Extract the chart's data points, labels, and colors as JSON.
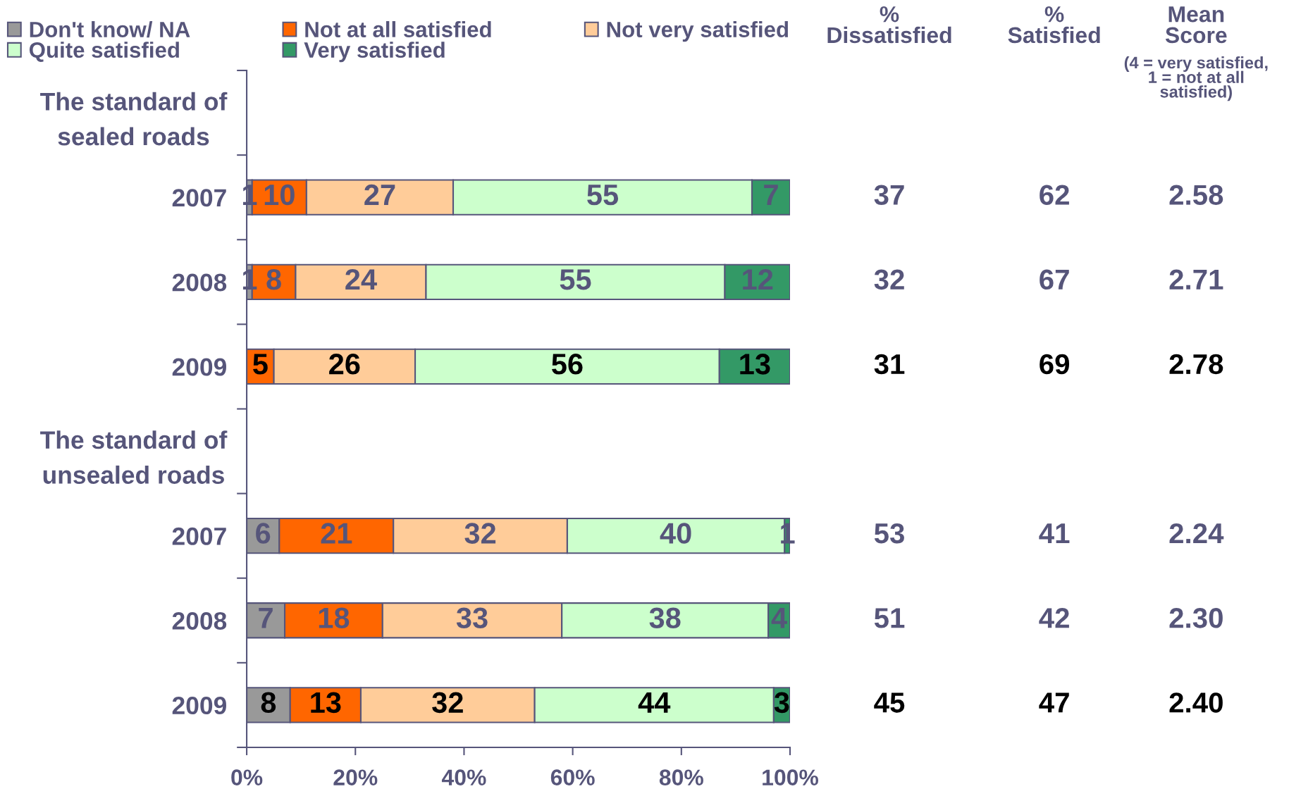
{
  "chart_data": {
    "type": "bar",
    "orientation": "horizontal",
    "stacked": true,
    "categories": [
      "The standard of\nsealed roads",
      "2007",
      "2008",
      "2009",
      "The standard of\nunsealed roads",
      "2007",
      "2008",
      "2009"
    ],
    "series": [
      {
        "name": "Don't know/ NA",
        "color": "#999999",
        "values": [
          null,
          1,
          1,
          null,
          null,
          6,
          7,
          8
        ]
      },
      {
        "name": "Not at all satisfied",
        "color": "#ff6600",
        "values": [
          null,
          10,
          8,
          5,
          null,
          21,
          18,
          13
        ]
      },
      {
        "name": "Not very satisfied",
        "color": "#ffcc99",
        "values": [
          null,
          27,
          24,
          26,
          null,
          32,
          33,
          32
        ]
      },
      {
        "name": "Quite satisfied",
        "color": "#ccffcc",
        "values": [
          null,
          55,
          55,
          56,
          null,
          40,
          38,
          44
        ]
      },
      {
        "name": "Very satisfied",
        "color": "#339966",
        "values": [
          null,
          7,
          12,
          13,
          null,
          1,
          4,
          3
        ]
      }
    ],
    "xlim": [
      0,
      100
    ],
    "xticks": [
      {
        "value": 0,
        "label": "0%"
      },
      {
        "value": 20,
        "label": "20%"
      },
      {
        "value": 40,
        "label": "40%"
      },
      {
        "value": 60,
        "label": "60%"
      },
      {
        "value": 80,
        "label": "80%"
      },
      {
        "value": 100,
        "label": "100%"
      }
    ],
    "data_labels": true,
    "legend": "top",
    "annotations": [
      "%\nDissatisfied",
      "%\nSatisfied",
      "Mean\nScore",
      "(4 = very satisfied,\n1 = not at all\nsatisfied)",
      "37",
      "62",
      "2.58",
      "32",
      "67",
      "2.71",
      "31",
      "69",
      "2.78",
      "53",
      "41",
      "2.24",
      "51",
      "42",
      "2.30",
      "45",
      "47",
      "2.40"
    ]
  }
}
